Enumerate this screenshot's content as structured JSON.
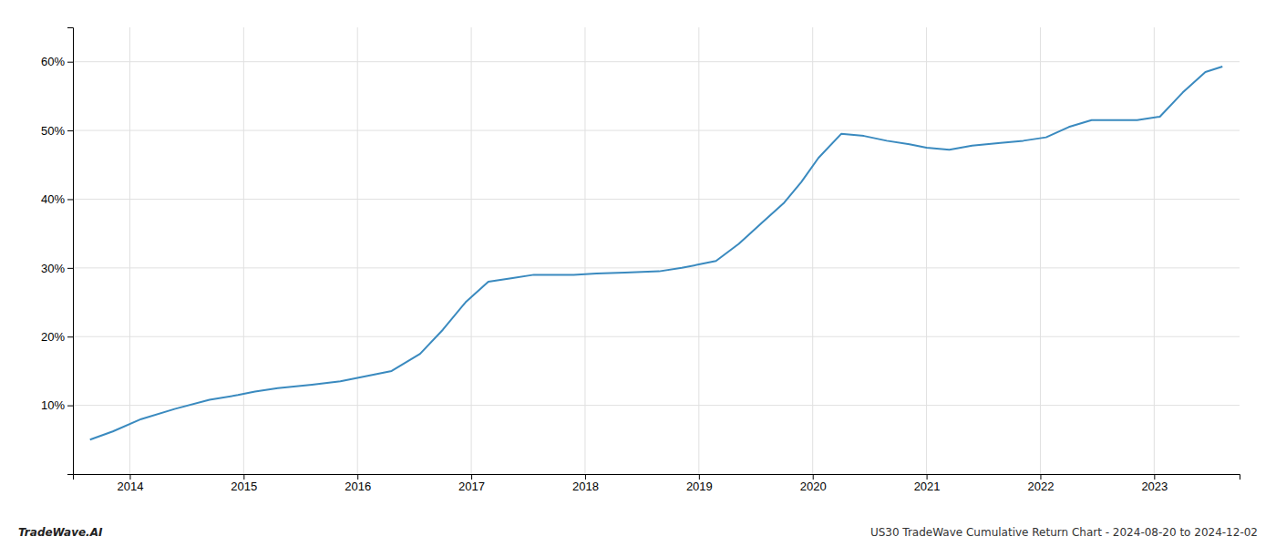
{
  "chart_data": {
    "type": "line",
    "x": [
      2013.65,
      2013.85,
      2014.1,
      2014.4,
      2014.7,
      2014.95,
      2015.1,
      2015.3,
      2015.6,
      2015.85,
      2016.0,
      2016.15,
      2016.3,
      2016.55,
      2016.75,
      2016.95,
      2017.15,
      2017.35,
      2017.55,
      2017.75,
      2017.9,
      2018.1,
      2018.35,
      2018.65,
      2018.85,
      2019.0,
      2019.15,
      2019.35,
      2019.55,
      2019.75,
      2019.9,
      2020.05,
      2020.25,
      2020.45,
      2020.65,
      2020.85,
      2021.0,
      2021.2,
      2021.4,
      2021.65,
      2021.85,
      2022.05,
      2022.25,
      2022.45,
      2022.65,
      2022.85,
      2023.05,
      2023.25,
      2023.45,
      2023.6
    ],
    "values": [
      5.0,
      6.2,
      8.0,
      9.5,
      10.8,
      11.5,
      12.0,
      12.5,
      13.0,
      13.5,
      14.0,
      14.5,
      15.0,
      17.5,
      21.0,
      25.0,
      28.0,
      28.5,
      29.0,
      29.0,
      29.0,
      29.2,
      29.3,
      29.5,
      30.0,
      30.5,
      31.0,
      33.5,
      36.5,
      39.5,
      42.5,
      46.0,
      49.5,
      49.2,
      48.5,
      48.0,
      47.5,
      47.2,
      47.8,
      48.2,
      48.5,
      49.0,
      50.5,
      51.5,
      51.5,
      51.5,
      52.0,
      55.5,
      58.5,
      59.3
    ],
    "color": "#3a8abf",
    "xlim": [
      2013.5,
      2023.75
    ],
    "ylim": [
      0,
      65
    ],
    "xticks": [
      2014,
      2015,
      2016,
      2017,
      2018,
      2019,
      2020,
      2021,
      2022,
      2023
    ],
    "yticks": [
      {
        "value": 10,
        "label": "10%"
      },
      {
        "value": 20,
        "label": "20%"
      },
      {
        "value": 30,
        "label": "30%"
      },
      {
        "value": 40,
        "label": "40%"
      },
      {
        "value": 50,
        "label": "50%"
      },
      {
        "value": 60,
        "label": "60%"
      }
    ],
    "grid": true,
    "annotations": [
      "TradeWave.AI",
      "US30 TradeWave Cumulative Return Chart - 2024-08-20 to 2024-12-02"
    ]
  }
}
